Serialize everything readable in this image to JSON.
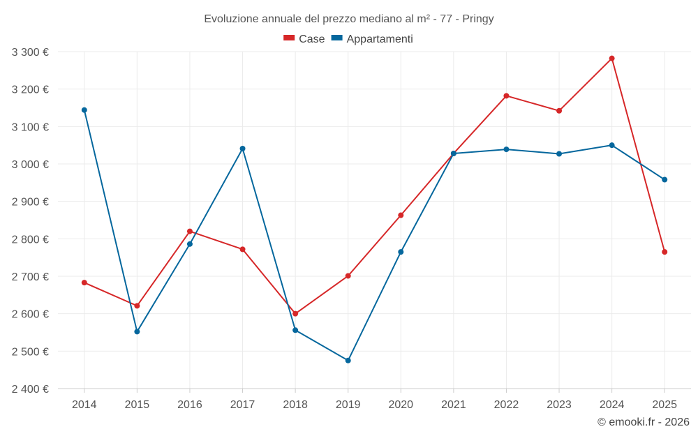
{
  "chart_data": {
    "type": "line",
    "title": "Evoluzione annuale del prezzo mediano al m² - 77 - Pringy",
    "xlabel": "",
    "ylabel": "",
    "categories": [
      "2014",
      "2015",
      "2016",
      "2017",
      "2018",
      "2019",
      "2020",
      "2021",
      "2022",
      "2023",
      "2024",
      "2025"
    ],
    "ylim": [
      2400,
      3300
    ],
    "yticks": [
      2400,
      2500,
      2600,
      2700,
      2800,
      2900,
      3000,
      3100,
      3200,
      3300
    ],
    "ytick_labels": [
      "2 400 €",
      "2 500 €",
      "2 600 €",
      "2 700 €",
      "2 800 €",
      "2 900 €",
      "3 000 €",
      "3 100 €",
      "3 200 €",
      "3 300 €"
    ],
    "grid": true,
    "legend_position": "top-center",
    "series": [
      {
        "name": "Case",
        "color": "#d62728",
        "values": [
          2683,
          2621,
          2820,
          2772,
          2600,
          2701,
          2863,
          3028,
          3182,
          3142,
          3282,
          2765
        ]
      },
      {
        "name": "Appartamenti",
        "color": "#05679d",
        "values": [
          3144,
          2552,
          2786,
          3041,
          2556,
          2475,
          2765,
          3028,
          3039,
          3027,
          3050,
          2958
        ]
      }
    ],
    "credit": "© emooki.fr - 2026"
  }
}
